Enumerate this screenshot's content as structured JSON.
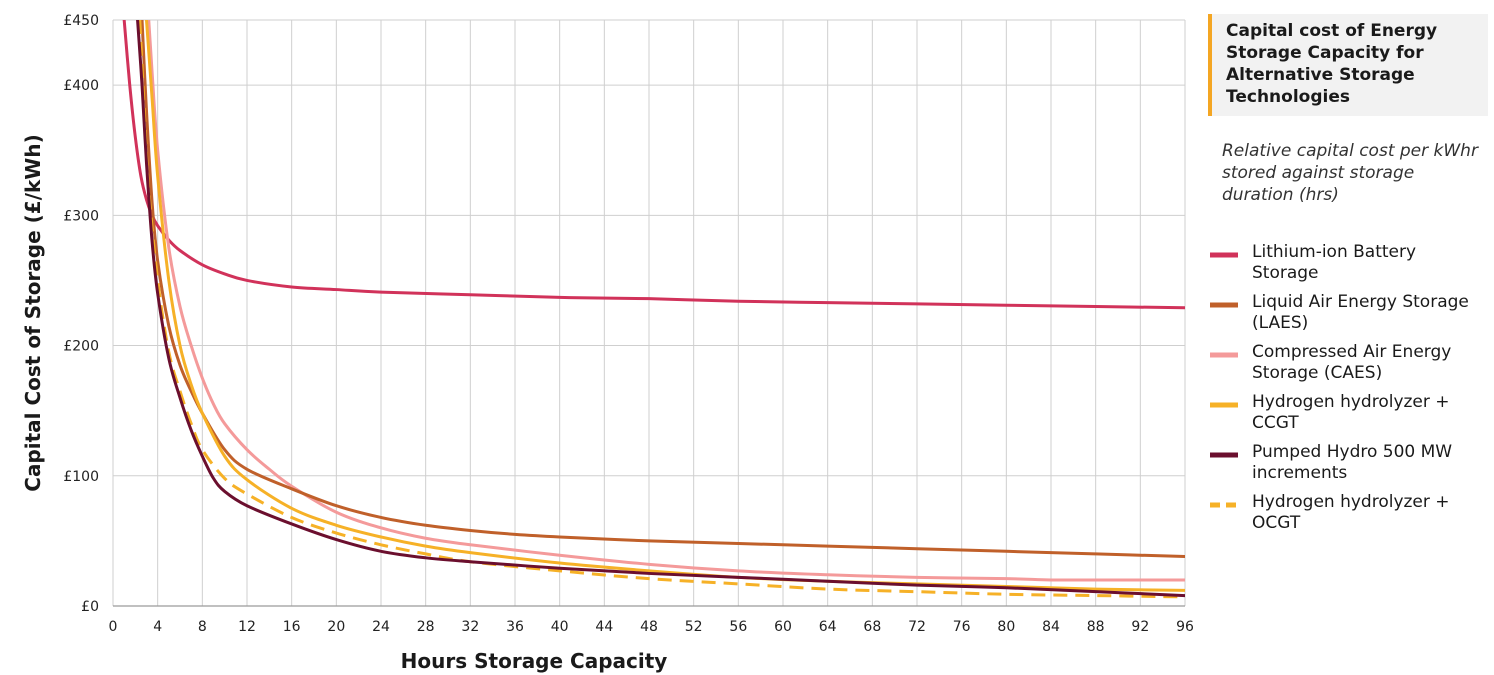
{
  "side_panel": {
    "title": "Capital cost of Energy Storage Capacity for Alternative Storage Technologies",
    "subtitle": "Relative capital cost per kWhr stored against storage duration (hrs)"
  },
  "chart_data": {
    "type": "line",
    "xlabel": "Hours Storage Capacity",
    "ylabel": "Capital Cost of Storage (£/kWh)",
    "xlim": [
      0,
      96
    ],
    "ylim": [
      0,
      450
    ],
    "xticks": [
      0,
      4,
      8,
      12,
      16,
      20,
      24,
      28,
      32,
      36,
      40,
      44,
      48,
      52,
      56,
      60,
      64,
      68,
      72,
      76,
      80,
      84,
      88,
      92,
      96
    ],
    "xtick_labels": [
      "0",
      "4",
      "8",
      "12",
      "16",
      "20",
      "24",
      "28",
      "32",
      "36",
      "40",
      "44",
      "48",
      "52",
      "56",
      "60",
      "64",
      "68",
      "72",
      "76",
      "80",
      "84",
      "88",
      "92",
      "96"
    ],
    "yticks": [
      0,
      100,
      200,
      300,
      400,
      450
    ],
    "ytick_labels": [
      "£0",
      "£100",
      "£200",
      "£300",
      "£400",
      "£450"
    ],
    "grid": true,
    "legend_position": "right",
    "series": [
      {
        "name": "Lithium-ion Battery Storage",
        "color": "#d1325a",
        "dashed": false,
        "x": [
          1.0,
          1.5,
          2,
          2.5,
          3,
          3.5,
          4,
          5,
          6,
          8,
          10,
          12,
          16,
          20,
          24,
          32,
          40,
          48,
          56,
          64,
          72,
          80,
          88,
          96
        ],
        "y": [
          450,
          400,
          360,
          330,
          312,
          300,
          292,
          281,
          273,
          262,
          255,
          250,
          245,
          243,
          241,
          239,
          237,
          236,
          234,
          233,
          232,
          231,
          230,
          229
        ]
      },
      {
        "name": "Liquid Air Energy Storage (LAES)",
        "color": "#c0602a",
        "dashed": false,
        "x": [
          2.6,
          3,
          3.5,
          4,
          5,
          6,
          7,
          8,
          10,
          12,
          16,
          20,
          24,
          28,
          32,
          36,
          40,
          48,
          56,
          64,
          72,
          80,
          88,
          96
        ],
        "y": [
          450,
          380,
          310,
          265,
          215,
          185,
          165,
          148,
          120,
          105,
          90,
          77,
          68,
          62,
          58,
          55,
          53,
          50,
          48,
          46,
          44,
          42,
          40,
          38
        ]
      },
      {
        "name": "Compressed Air Energy Storage (CAES)",
        "color": "#f49a9a",
        "dashed": false,
        "x": [
          3.2,
          3.5,
          4,
          5,
          6,
          7,
          8,
          9,
          10,
          12,
          14,
          16,
          20,
          24,
          28,
          32,
          40,
          48,
          56,
          64,
          72,
          80,
          84,
          88,
          96
        ],
        "y": [
          450,
          410,
          350,
          275,
          230,
          200,
          175,
          155,
          140,
          120,
          105,
          92,
          72,
          60,
          52,
          47,
          39,
          32,
          27,
          24,
          22,
          21,
          20,
          20,
          20
        ]
      },
      {
        "name": "Hydrogen hydrolyzer + CCGT",
        "color": "#f6b127",
        "dashed": false,
        "x": [
          3.0,
          3.5,
          4,
          5,
          6,
          7,
          8,
          10,
          12,
          16,
          20,
          24,
          28,
          32,
          40,
          48,
          56,
          64,
          72,
          80,
          88,
          96
        ],
        "y": [
          450,
          390,
          330,
          250,
          200,
          170,
          148,
          115,
          97,
          75,
          62,
          53,
          46,
          41,
          33,
          27,
          22,
          19,
          17,
          15,
          13,
          12
        ]
      },
      {
        "name": "Pumped Hydro 500 MW increments",
        "color": "#6b0f2e",
        "dashed": false,
        "x": [
          2.2,
          2.6,
          3,
          3.5,
          4,
          5,
          6,
          7,
          8,
          9,
          10,
          12,
          16,
          20,
          24,
          28,
          32,
          40,
          48,
          56,
          64,
          72,
          80,
          88,
          96
        ],
        "y": [
          450,
          400,
          340,
          280,
          240,
          190,
          160,
          135,
          115,
          98,
          88,
          77,
          63,
          51,
          42,
          37,
          34,
          29,
          25,
          22,
          19,
          16,
          14,
          11,
          8
        ]
      },
      {
        "name": "Hydrogen hydrolyzer + OCGT",
        "color": "#f6b127",
        "dashed": true,
        "x": [
          2.4,
          2.8,
          3.2,
          4,
          5,
          6,
          7,
          8,
          10,
          12,
          16,
          20,
          24,
          28,
          32,
          40,
          48,
          56,
          64,
          72,
          80,
          88,
          96
        ],
        "y": [
          450,
          380,
          320,
          250,
          195,
          165,
          140,
          120,
          98,
          86,
          68,
          56,
          47,
          40,
          34,
          27,
          21,
          17,
          13,
          11,
          9,
          8,
          7
        ]
      }
    ]
  }
}
